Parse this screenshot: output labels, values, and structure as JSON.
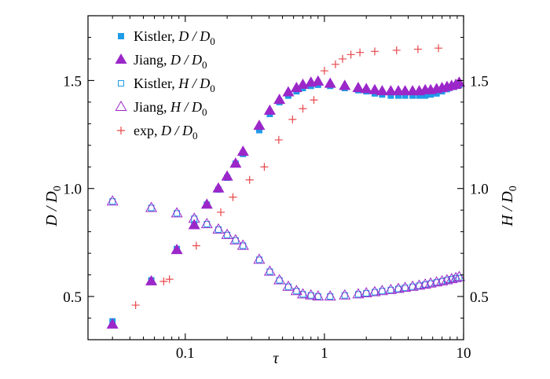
{
  "chart_data": {
    "type": "scatter",
    "xlabel": "τ",
    "ylabel_left": "D / D",
    "ylabel_left_sub": "0",
    "ylabel_right": "H / D",
    "ylabel_right_sub": "0",
    "xscale": "log",
    "xlim": [
      0.02,
      10
    ],
    "ylim": [
      0.3,
      1.8
    ],
    "x_ticks": [
      0.1,
      1,
      10
    ],
    "x_tick_labels": [
      "0.1",
      "1",
      "10"
    ],
    "y_ticks": [
      0.5,
      1.0,
      1.5
    ],
    "y_tick_labels_left": [
      "0.5",
      "1.0",
      "1.5"
    ],
    "y_tick_labels_right": [
      "0.5",
      "1.0",
      "1.5"
    ],
    "legend_position": "top-left",
    "grid": false,
    "colors": {
      "blue": "#1f9be8",
      "purple": "#9b27c9",
      "red": "#e8474b"
    },
    "series": [
      {
        "name": "Kistler, D / D",
        "name_main": "Kistler, ",
        "name_var": "D / D",
        "name_sub": "0",
        "marker": "square-filled",
        "color": "#1f9be8",
        "points": [
          [
            0.03,
            0.385
          ],
          [
            0.057,
            0.575
          ],
          [
            0.087,
            0.72
          ],
          [
            0.116,
            0.83
          ],
          [
            0.143,
            0.925
          ],
          [
            0.173,
            0.995
          ],
          [
            0.2,
            1.05
          ],
          [
            0.23,
            1.115
          ],
          [
            0.26,
            1.16
          ],
          [
            0.34,
            1.27
          ],
          [
            0.405,
            1.345
          ],
          [
            0.475,
            1.4
          ],
          [
            0.55,
            1.43
          ],
          [
            0.63,
            1.45
          ],
          [
            0.7,
            1.465
          ],
          [
            0.8,
            1.475
          ],
          [
            0.9,
            1.48
          ],
          [
            1.1,
            1.475
          ],
          [
            1.4,
            1.465
          ],
          [
            1.75,
            1.455
          ],
          [
            2.0,
            1.45
          ],
          [
            2.3,
            1.44
          ],
          [
            2.6,
            1.435
          ],
          [
            3.0,
            1.43
          ],
          [
            3.4,
            1.43
          ],
          [
            3.8,
            1.43
          ],
          [
            4.3,
            1.43
          ],
          [
            4.8,
            1.43
          ],
          [
            5.3,
            1.43
          ],
          [
            5.8,
            1.435
          ],
          [
            6.4,
            1.44
          ],
          [
            7.0,
            1.45
          ],
          [
            7.6,
            1.46
          ],
          [
            8.2,
            1.47
          ],
          [
            8.8,
            1.475
          ],
          [
            9.3,
            1.48
          ]
        ]
      },
      {
        "name": "Jiang, D / D",
        "name_main": "Jiang, ",
        "name_var": "D / D",
        "name_sub": "0",
        "marker": "triangle-filled",
        "color": "#9b27c9",
        "points": [
          [
            0.03,
            0.37
          ],
          [
            0.057,
            0.57
          ],
          [
            0.087,
            0.715
          ],
          [
            0.116,
            0.83
          ],
          [
            0.143,
            0.925
          ],
          [
            0.173,
            1.0
          ],
          [
            0.2,
            1.055
          ],
          [
            0.23,
            1.115
          ],
          [
            0.26,
            1.17
          ],
          [
            0.34,
            1.29
          ],
          [
            0.405,
            1.36
          ],
          [
            0.475,
            1.41
          ],
          [
            0.55,
            1.445
          ],
          [
            0.63,
            1.465
          ],
          [
            0.7,
            1.48
          ],
          [
            0.8,
            1.49
          ],
          [
            0.9,
            1.495
          ],
          [
            1.1,
            1.485
          ],
          [
            1.4,
            1.475
          ],
          [
            1.75,
            1.465
          ],
          [
            2.0,
            1.46
          ],
          [
            2.3,
            1.455
          ],
          [
            2.6,
            1.45
          ],
          [
            3.0,
            1.45
          ],
          [
            3.4,
            1.45
          ],
          [
            3.8,
            1.45
          ],
          [
            4.3,
            1.45
          ],
          [
            4.8,
            1.45
          ],
          [
            5.3,
            1.455
          ],
          [
            5.8,
            1.455
          ],
          [
            6.4,
            1.46
          ],
          [
            7.0,
            1.465
          ],
          [
            7.6,
            1.47
          ],
          [
            8.2,
            1.475
          ],
          [
            8.8,
            1.48
          ],
          [
            9.3,
            1.49
          ]
        ]
      },
      {
        "name": "Kistler, H / D",
        "name_main": "Kistler, ",
        "name_var": "H / D",
        "name_sub": "0",
        "marker": "square-open",
        "color": "#1f9be8",
        "points": [
          [
            0.03,
            0.94
          ],
          [
            0.057,
            0.91
          ],
          [
            0.087,
            0.885
          ],
          [
            0.116,
            0.86
          ],
          [
            0.143,
            0.835
          ],
          [
            0.173,
            0.81
          ],
          [
            0.2,
            0.785
          ],
          [
            0.23,
            0.76
          ],
          [
            0.26,
            0.735
          ],
          [
            0.34,
            0.67
          ],
          [
            0.405,
            0.615
          ],
          [
            0.475,
            0.575
          ],
          [
            0.55,
            0.545
          ],
          [
            0.63,
            0.525
          ],
          [
            0.7,
            0.51
          ],
          [
            0.8,
            0.505
          ],
          [
            0.9,
            0.5
          ],
          [
            1.1,
            0.5
          ],
          [
            1.4,
            0.505
          ],
          [
            1.75,
            0.51
          ],
          [
            2.0,
            0.515
          ],
          [
            2.3,
            0.52
          ],
          [
            2.6,
            0.525
          ],
          [
            3.0,
            0.53
          ],
          [
            3.4,
            0.535
          ],
          [
            3.8,
            0.54
          ],
          [
            4.3,
            0.545
          ],
          [
            4.8,
            0.55
          ],
          [
            5.3,
            0.555
          ],
          [
            5.8,
            0.56
          ],
          [
            6.4,
            0.565
          ],
          [
            7.0,
            0.57
          ],
          [
            7.6,
            0.575
          ],
          [
            8.2,
            0.58
          ],
          [
            8.8,
            0.585
          ],
          [
            9.3,
            0.585
          ]
        ]
      },
      {
        "name": "Jiang, H / D",
        "name_main": "Jiang, ",
        "name_var": "H / D",
        "name_sub": "0",
        "marker": "triangle-open",
        "color": "#9b27c9",
        "points": [
          [
            0.03,
            0.94
          ],
          [
            0.057,
            0.91
          ],
          [
            0.087,
            0.885
          ],
          [
            0.116,
            0.86
          ],
          [
            0.143,
            0.835
          ],
          [
            0.173,
            0.81
          ],
          [
            0.2,
            0.785
          ],
          [
            0.23,
            0.76
          ],
          [
            0.26,
            0.735
          ],
          [
            0.34,
            0.67
          ],
          [
            0.405,
            0.615
          ],
          [
            0.475,
            0.575
          ],
          [
            0.55,
            0.545
          ],
          [
            0.63,
            0.525
          ],
          [
            0.7,
            0.51
          ],
          [
            0.8,
            0.505
          ],
          [
            0.9,
            0.5
          ],
          [
            1.1,
            0.5
          ],
          [
            1.4,
            0.505
          ],
          [
            1.75,
            0.51
          ],
          [
            2.0,
            0.515
          ],
          [
            2.3,
            0.52
          ],
          [
            2.6,
            0.525
          ],
          [
            3.0,
            0.53
          ],
          [
            3.4,
            0.535
          ],
          [
            3.8,
            0.54
          ],
          [
            4.3,
            0.545
          ],
          [
            4.8,
            0.55
          ],
          [
            5.3,
            0.555
          ],
          [
            5.8,
            0.56
          ],
          [
            6.4,
            0.565
          ],
          [
            7.0,
            0.57
          ],
          [
            7.6,
            0.575
          ],
          [
            8.2,
            0.58
          ],
          [
            8.8,
            0.585
          ],
          [
            9.3,
            0.59
          ]
        ]
      },
      {
        "name": "exp, D / D",
        "name_main": "exp, ",
        "name_var": "D / D",
        "name_sub": "0",
        "marker": "plus",
        "color": "#e8474b",
        "points": [
          [
            0.044,
            0.46
          ],
          [
            0.07,
            0.57
          ],
          [
            0.077,
            0.58
          ],
          [
            0.12,
            0.735
          ],
          [
            0.18,
            0.89
          ],
          [
            0.22,
            0.96
          ],
          [
            0.29,
            1.04
          ],
          [
            0.37,
            1.1
          ],
          [
            0.47,
            1.225
          ],
          [
            0.59,
            1.32
          ],
          [
            0.7,
            1.37
          ],
          [
            0.84,
            1.41
          ],
          [
            1.0,
            1.545
          ],
          [
            1.2,
            1.575
          ],
          [
            1.35,
            1.6
          ],
          [
            1.55,
            1.62
          ],
          [
            1.8,
            1.63
          ],
          [
            2.3,
            1.635
          ],
          [
            3.3,
            1.64
          ],
          [
            4.7,
            1.645
          ],
          [
            6.6,
            1.65
          ]
        ]
      }
    ]
  }
}
